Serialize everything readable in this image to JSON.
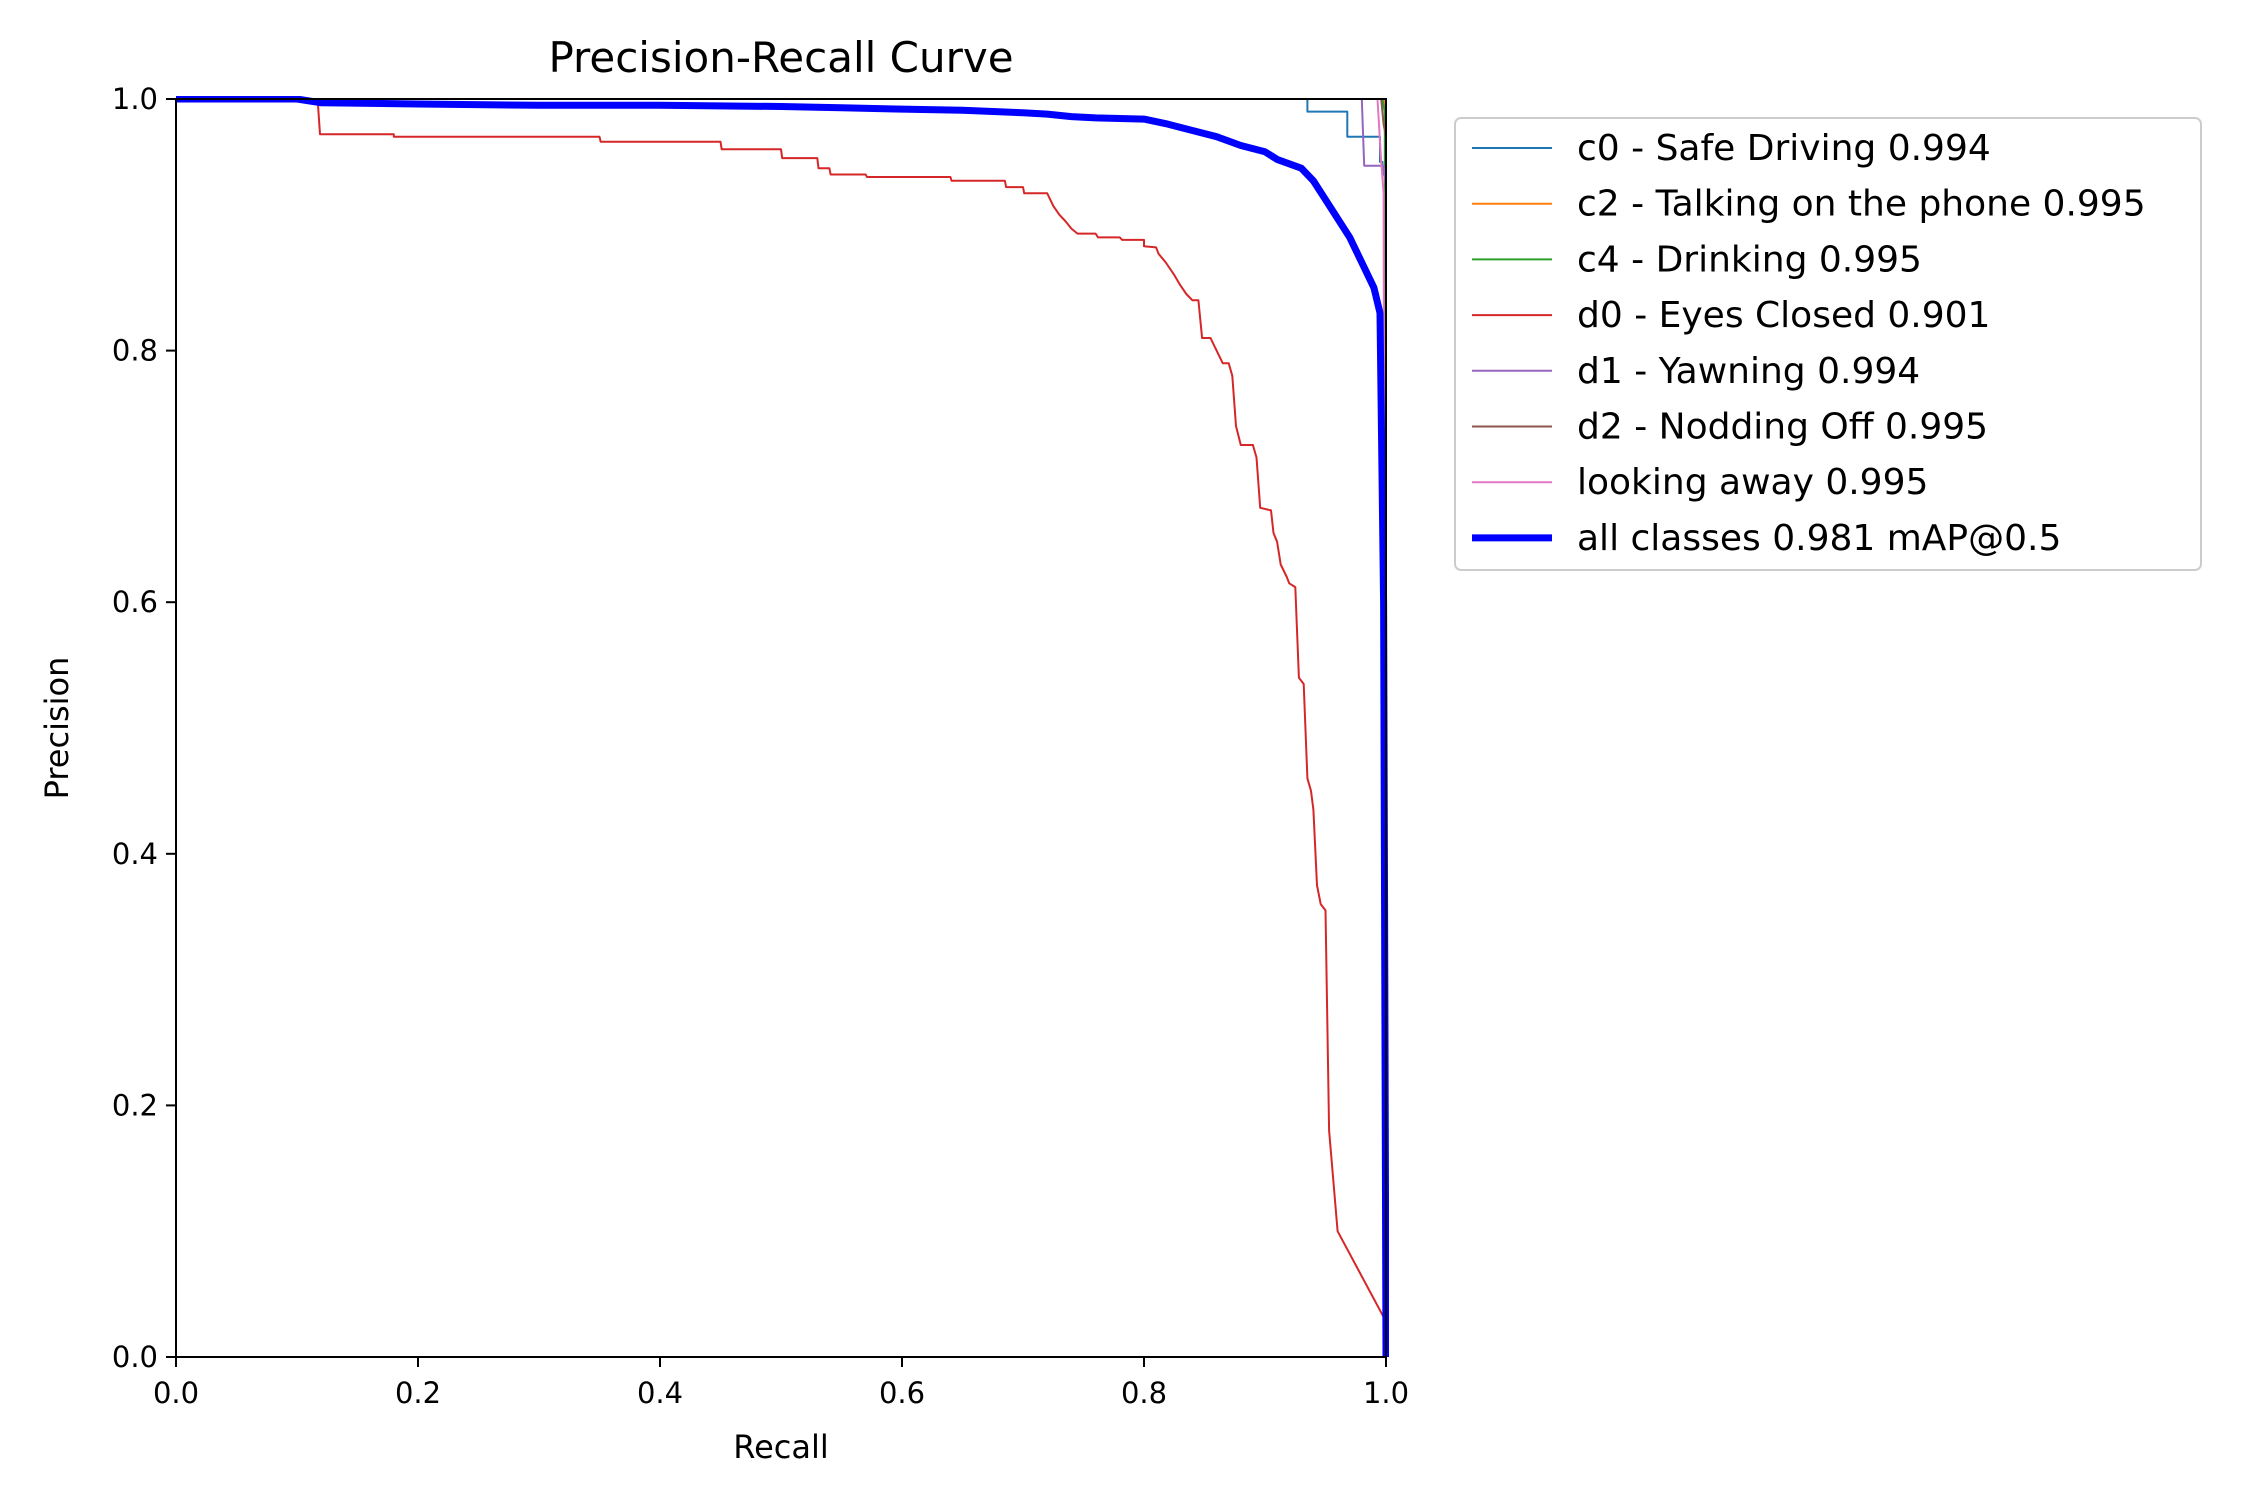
{
  "chart_data": {
    "type": "line",
    "title": "Precision-Recall Curve",
    "xlabel": "Recall",
    "ylabel": "Precision",
    "xlim": [
      0,
      1
    ],
    "ylim": [
      0,
      1
    ],
    "x_ticks": [
      "0.0",
      "0.2",
      "0.4",
      "0.6",
      "0.8",
      "1.0"
    ],
    "y_ticks": [
      "0.0",
      "0.2",
      "0.4",
      "0.6",
      "0.8",
      "1.0"
    ],
    "grid": false,
    "legend_position": "outside-right-top",
    "series": [
      {
        "name": "c0 - Safe Driving 0.994",
        "color": "#1f77b4",
        "width": 2,
        "points": [
          [
            0,
            1
          ],
          [
            0.935,
            1
          ],
          [
            0.935,
            0.99
          ],
          [
            0.968,
            0.99
          ],
          [
            0.968,
            0.97
          ],
          [
            0.995,
            0.97
          ],
          [
            0.995,
            0.95
          ],
          [
            0.997,
            0.95
          ],
          [
            0.997,
            0.94
          ],
          [
            1,
            0.94
          ],
          [
            1,
            0
          ]
        ]
      },
      {
        "name": "c2 - Talking on the phone 0.995",
        "color": "#ff7f0e",
        "width": 2,
        "points": [
          [
            0,
            1
          ],
          [
            0.998,
            1
          ],
          [
            1,
            0.99
          ],
          [
            1,
            0
          ]
        ]
      },
      {
        "name": "c4 - Drinking 0.995",
        "color": "#2ca02c",
        "width": 2,
        "points": [
          [
            0,
            1
          ],
          [
            0.997,
            1
          ],
          [
            0.999,
            0.99
          ],
          [
            1,
            0
          ]
        ]
      },
      {
        "name": "d0 - Eyes Closed 0.901",
        "color": "#d62728",
        "width": 2,
        "points": [
          [
            0,
            1
          ],
          [
            0.117,
            1
          ],
          [
            0.119,
            0.972
          ],
          [
            0.18,
            0.972
          ],
          [
            0.18,
            0.97
          ],
          [
            0.35,
            0.97
          ],
          [
            0.351,
            0.966
          ],
          [
            0.45,
            0.966
          ],
          [
            0.451,
            0.96
          ],
          [
            0.5,
            0.96
          ],
          [
            0.501,
            0.953
          ],
          [
            0.53,
            0.953
          ],
          [
            0.531,
            0.945
          ],
          [
            0.54,
            0.945
          ],
          [
            0.541,
            0.94
          ],
          [
            0.57,
            0.94
          ],
          [
            0.571,
            0.938
          ],
          [
            0.64,
            0.938
          ],
          [
            0.641,
            0.935
          ],
          [
            0.685,
            0.935
          ],
          [
            0.686,
            0.93
          ],
          [
            0.7,
            0.93
          ],
          [
            0.701,
            0.925
          ],
          [
            0.72,
            0.925
          ],
          [
            0.725,
            0.915
          ],
          [
            0.73,
            0.908
          ],
          [
            0.735,
            0.903
          ],
          [
            0.74,
            0.897
          ],
          [
            0.745,
            0.893
          ],
          [
            0.76,
            0.893
          ],
          [
            0.762,
            0.89
          ],
          [
            0.78,
            0.89
          ],
          [
            0.782,
            0.888
          ],
          [
            0.8,
            0.888
          ],
          [
            0.8,
            0.883
          ],
          [
            0.81,
            0.882
          ],
          [
            0.812,
            0.877
          ],
          [
            0.818,
            0.87
          ],
          [
            0.825,
            0.86
          ],
          [
            0.83,
            0.852
          ],
          [
            0.835,
            0.845
          ],
          [
            0.84,
            0.84
          ],
          [
            0.845,
            0.84
          ],
          [
            0.848,
            0.81
          ],
          [
            0.855,
            0.81
          ],
          [
            0.86,
            0.8
          ],
          [
            0.865,
            0.79
          ],
          [
            0.87,
            0.79
          ],
          [
            0.873,
            0.78
          ],
          [
            0.876,
            0.74
          ],
          [
            0.88,
            0.725
          ],
          [
            0.89,
            0.725
          ],
          [
            0.893,
            0.715
          ],
          [
            0.896,
            0.675
          ],
          [
            0.905,
            0.673
          ],
          [
            0.907,
            0.655
          ],
          [
            0.91,
            0.648
          ],
          [
            0.913,
            0.63
          ],
          [
            0.918,
            0.62
          ],
          [
            0.92,
            0.615
          ],
          [
            0.925,
            0.612
          ],
          [
            0.928,
            0.54
          ],
          [
            0.932,
            0.535
          ],
          [
            0.935,
            0.46
          ],
          [
            0.938,
            0.45
          ],
          [
            0.94,
            0.435
          ],
          [
            0.943,
            0.375
          ],
          [
            0.946,
            0.36
          ],
          [
            0.95,
            0.355
          ],
          [
            0.953,
            0.18
          ],
          [
            0.96,
            0.1
          ],
          [
            0.999,
            0.03
          ],
          [
            1,
            0
          ]
        ]
      },
      {
        "name": "d1 - Yawning 0.994",
        "color": "#9467bd",
        "width": 2,
        "points": [
          [
            0,
            1
          ],
          [
            0.98,
            1
          ],
          [
            0.982,
            0.947
          ],
          [
            0.998,
            0.947
          ],
          [
            1,
            0.93
          ],
          [
            1,
            0
          ]
        ]
      },
      {
        "name": "d2 - Nodding Off 0.995",
        "color": "#8c564b",
        "width": 2,
        "points": [
          [
            0,
            1
          ],
          [
            0.996,
            1
          ],
          [
            0.998,
            0.98
          ],
          [
            1,
            0.97
          ],
          [
            1,
            0
          ]
        ]
      },
      {
        "name": "looking away 0.995",
        "color": "#e377c2",
        "width": 2,
        "points": [
          [
            0,
            1
          ],
          [
            0.993,
            1
          ],
          [
            0.996,
            0.95
          ],
          [
            0.998,
            0.925
          ],
          [
            1,
            0
          ]
        ]
      },
      {
        "name": "all classes 0.981 mAP@0.5",
        "color": "#0000ff",
        "width": 7,
        "points": [
          [
            0,
            1
          ],
          [
            0.1,
            1
          ],
          [
            0.12,
            0.997
          ],
          [
            0.2,
            0.996
          ],
          [
            0.3,
            0.995
          ],
          [
            0.4,
            0.995
          ],
          [
            0.5,
            0.994
          ],
          [
            0.55,
            0.993
          ],
          [
            0.6,
            0.992
          ],
          [
            0.65,
            0.991
          ],
          [
            0.7,
            0.989
          ],
          [
            0.72,
            0.988
          ],
          [
            0.74,
            0.986
          ],
          [
            0.76,
            0.985
          ],
          [
            0.8,
            0.984
          ],
          [
            0.82,
            0.98
          ],
          [
            0.84,
            0.975
          ],
          [
            0.86,
            0.97
          ],
          [
            0.88,
            0.963
          ],
          [
            0.9,
            0.958
          ],
          [
            0.91,
            0.952
          ],
          [
            0.93,
            0.945
          ],
          [
            0.94,
            0.935
          ],
          [
            0.95,
            0.92
          ],
          [
            0.96,
            0.905
          ],
          [
            0.97,
            0.89
          ],
          [
            0.98,
            0.87
          ],
          [
            0.99,
            0.85
          ],
          [
            0.995,
            0.83
          ],
          [
            0.998,
            0.6
          ],
          [
            0.999,
            0.3
          ],
          [
            1,
            0
          ]
        ]
      }
    ]
  }
}
